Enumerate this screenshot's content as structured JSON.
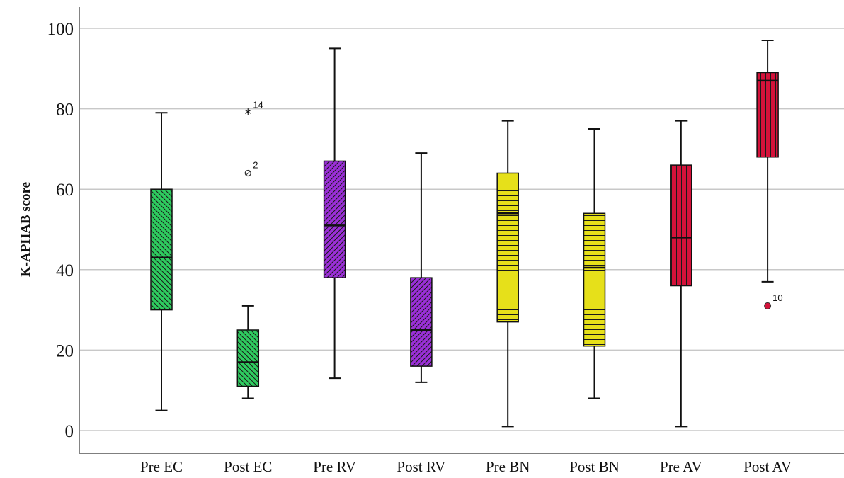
{
  "chart_data": {
    "type": "box",
    "ylabel": "K-APHAB score",
    "xlabel": "",
    "ylim": [
      0,
      100
    ],
    "yticks": [
      0,
      20,
      40,
      60,
      80,
      100
    ],
    "grid": "horizontal",
    "categories": [
      "Pre EC",
      "Post EC",
      "Pre RV",
      "Post RV",
      "Pre BN",
      "Post BN",
      "Pre AV",
      "Post AV"
    ],
    "boxes": [
      {
        "category": "Pre EC",
        "min": 5,
        "q1": 30,
        "median": 43,
        "q3": 60,
        "max": 79,
        "color": "#2ecc5f",
        "pattern": "diag-down",
        "outliers": []
      },
      {
        "category": "Post EC",
        "min": 8,
        "q1": 11,
        "median": 17,
        "q3": 25,
        "max": 31,
        "color": "#2ecc5f",
        "pattern": "diag-down",
        "outliers": [
          {
            "value": 79,
            "label": "14",
            "kind": "extreme"
          },
          {
            "value": 64,
            "label": "2",
            "kind": "outlier"
          }
        ]
      },
      {
        "category": "Pre RV",
        "min": 13,
        "q1": 38,
        "median": 51,
        "q3": 67,
        "max": 95,
        "color": "#9b2fd8",
        "pattern": "diag-up",
        "outliers": []
      },
      {
        "category": "Post RV",
        "min": 12,
        "q1": 16,
        "median": 25,
        "q3": 38,
        "max": 69,
        "color": "#9b2fd8",
        "pattern": "diag-up",
        "outliers": []
      },
      {
        "category": "Pre BN",
        "min": 1,
        "q1": 27,
        "median": 54,
        "q3": 64,
        "max": 77,
        "color": "#e6e01a",
        "pattern": "horizontal",
        "outliers": []
      },
      {
        "category": "Post BN",
        "min": 8,
        "q1": 21,
        "median": 40.5,
        "q3": 54,
        "max": 75,
        "color": "#e6e01a",
        "pattern": "horizontal",
        "outliers": []
      },
      {
        "category": "Pre AV",
        "min": 1,
        "q1": 36,
        "median": 48,
        "q3": 66,
        "max": 77,
        "color": "#d4123a",
        "pattern": "vertical",
        "outliers": []
      },
      {
        "category": "Post AV",
        "min": 37,
        "q1": 68,
        "median": 87,
        "q3": 89,
        "max": 97,
        "color": "#d4123a",
        "pattern": "vertical",
        "outliers": [
          {
            "value": 31,
            "label": "10",
            "kind": "outlier"
          }
        ]
      }
    ]
  }
}
